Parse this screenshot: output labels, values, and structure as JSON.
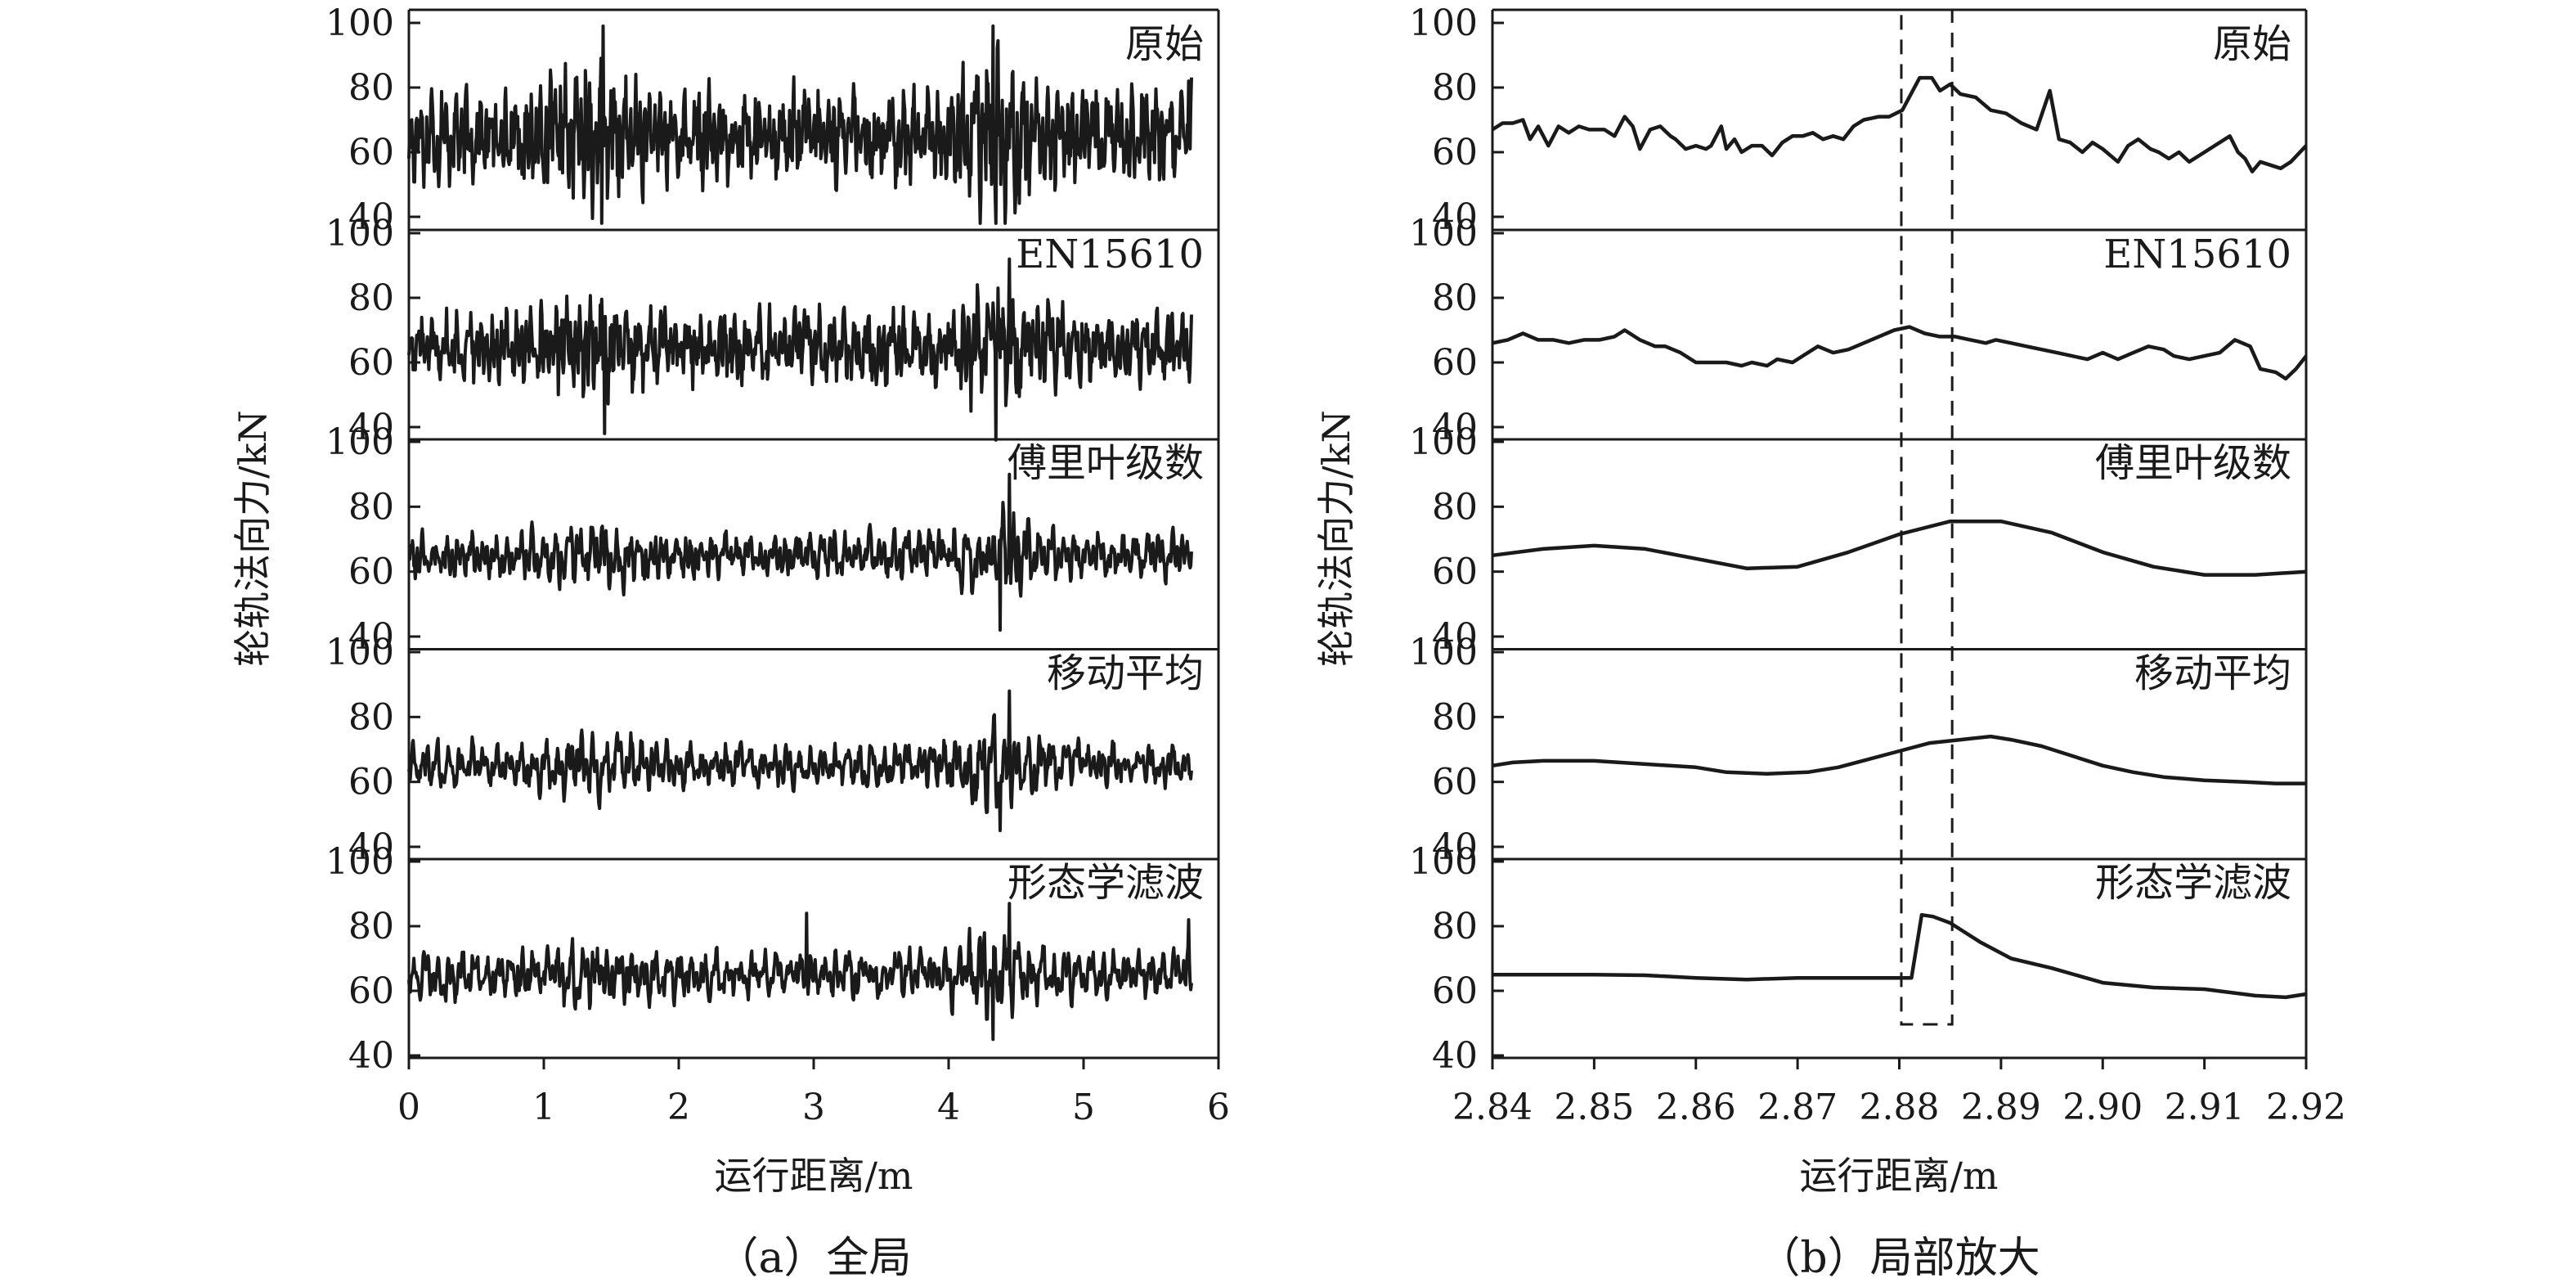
{
  "chart_data": [
    {
      "type": "line",
      "caption": "（a）全局",
      "xlabel": "运行距离/m",
      "ylabel": "轮轨法向力/kN",
      "xlim": [
        0,
        6
      ],
      "xticks": [
        0,
        1,
        2,
        3,
        4,
        5,
        6
      ],
      "xtick_labels": [
        "0",
        "1",
        "2",
        "3",
        "4",
        "5",
        "6"
      ],
      "yticks": [
        40,
        60,
        80,
        100
      ],
      "ytick_labels": [
        "40",
        "60",
        "80",
        "100"
      ],
      "x_extent": [
        0,
        5.8
      ],
      "subplots": [
        {
          "name": "原始",
          "ylim": [
            38,
            101
          ],
          "baseline": 65,
          "noise": 11,
          "smoothness": 0.1,
          "peaks": [
            {
              "x": 1.44,
              "y": 99
            },
            {
              "x": 1.43,
              "y": 38
            },
            {
              "x": 4.33,
              "y": 99
            },
            {
              "x": 4.35,
              "y": 38
            },
            {
              "x": 5.78,
              "y": 82
            }
          ]
        },
        {
          "name": "EN15610",
          "ylim": [
            38,
            101
          ],
          "baseline": 65,
          "noise": 9,
          "smoothness": 0.2,
          "peaks": [
            {
              "x": 4.45,
              "y": 92
            },
            {
              "x": 4.35,
              "y": 36
            },
            {
              "x": 1.45,
              "y": 38
            }
          ]
        },
        {
          "name": "傅里叶级数",
          "ylim": [
            38,
            101
          ],
          "baseline": 65,
          "noise": 7.5,
          "smoothness": 0.5,
          "peaks": [
            {
              "x": 4.45,
              "y": 90
            },
            {
              "x": 4.38,
              "y": 42
            }
          ]
        },
        {
          "name": "移动平均",
          "ylim": [
            38,
            101
          ],
          "baseline": 65,
          "noise": 7.5,
          "smoothness": 0.55,
          "peaks": [
            {
              "x": 4.45,
              "y": 88
            },
            {
              "x": 4.38,
              "y": 45
            }
          ]
        },
        {
          "name": "形态学滤波",
          "ylim": [
            38,
            101
          ],
          "baseline": 65,
          "noise": 7.5,
          "smoothness": 0.5,
          "peaks": [
            {
              "x": 4.45,
              "y": 87
            },
            {
              "x": 4.33,
              "y": 45
            },
            {
              "x": 2.95,
              "y": 84
            },
            {
              "x": 5.78,
              "y": 82
            }
          ]
        }
      ]
    },
    {
      "type": "line",
      "caption": "（b）局部放大",
      "xlabel": "运行距离/m",
      "ylabel": "轮轨法向力/kN",
      "xlim": [
        2.84,
        2.92
      ],
      "xticks": [
        2.84,
        2.85,
        2.86,
        2.87,
        2.88,
        2.89,
        2.9,
        2.91,
        2.92
      ],
      "xtick_labels": [
        "2.84",
        "2.85",
        "2.86",
        "2.87",
        "2.88",
        "2.89",
        "2.90",
        "2.91",
        "2.92"
      ],
      "yticks": [
        40,
        60,
        80,
        100
      ],
      "ytick_labels": [
        "40",
        "60",
        "80",
        "100"
      ],
      "highlight_box": {
        "x": [
          2.8802,
          2.8852
        ],
        "style": "dashed"
      },
      "subplots": [
        {
          "name": "原始",
          "ylim": [
            38,
            101
          ],
          "points": [
            [
              2.84,
              67
            ],
            [
              2.841,
              69
            ],
            [
              2.842,
              69
            ],
            [
              2.843,
              70
            ],
            [
              2.8437,
              64
            ],
            [
              2.8445,
              68
            ],
            [
              2.8455,
              62
            ],
            [
              2.8465,
              68
            ],
            [
              2.8475,
              66
            ],
            [
              2.8485,
              68
            ],
            [
              2.8495,
              67
            ],
            [
              2.851,
              67
            ],
            [
              2.852,
              65
            ],
            [
              2.853,
              71
            ],
            [
              2.8538,
              68
            ],
            [
              2.8545,
              61
            ],
            [
              2.8555,
              67
            ],
            [
              2.8565,
              68
            ],
            [
              2.8575,
              65
            ],
            [
              2.858,
              64
            ],
            [
              2.859,
              61
            ],
            [
              2.86,
              62
            ],
            [
              2.861,
              61
            ],
            [
              2.8615,
              62
            ],
            [
              2.8625,
              68
            ],
            [
              2.863,
              61
            ],
            [
              2.8638,
              64
            ],
            [
              2.8645,
              60
            ],
            [
              2.8655,
              62
            ],
            [
              2.8665,
              62
            ],
            [
              2.8675,
              59
            ],
            [
              2.8685,
              63
            ],
            [
              2.8695,
              65
            ],
            [
              2.8705,
              65
            ],
            [
              2.8715,
              66
            ],
            [
              2.8725,
              64
            ],
            [
              2.8735,
              65
            ],
            [
              2.8745,
              64
            ],
            [
              2.8755,
              68
            ],
            [
              2.8765,
              70
            ],
            [
              2.878,
              71
            ],
            [
              2.879,
              71
            ],
            [
              2.8803,
              73
            ],
            [
              2.882,
              83
            ],
            [
              2.8832,
              83
            ],
            [
              2.884,
              79
            ],
            [
              2.885,
              81
            ],
            [
              2.886,
              78
            ],
            [
              2.8875,
              77
            ],
            [
              2.889,
              73
            ],
            [
              2.8905,
              72
            ],
            [
              2.892,
              69
            ],
            [
              2.8935,
              67
            ],
            [
              2.8948,
              79
            ],
            [
              2.8957,
              64
            ],
            [
              2.8968,
              63
            ],
            [
              2.898,
              60
            ],
            [
              2.899,
              63
            ],
            [
              2.9,
              61
            ],
            [
              2.9015,
              57
            ],
            [
              2.9025,
              62
            ],
            [
              2.9035,
              64
            ],
            [
              2.9047,
              61
            ],
            [
              2.9055,
              60
            ],
            [
              2.9065,
              58
            ],
            [
              2.9075,
              60
            ],
            [
              2.9085,
              57
            ],
            [
              2.9095,
              59
            ],
            [
              2.911,
              62
            ],
            [
              2.9125,
              65
            ],
            [
              2.9133,
              60
            ],
            [
              2.914,
              58
            ],
            [
              2.9147,
              54
            ],
            [
              2.9155,
              57
            ],
            [
              2.9165,
              56
            ],
            [
              2.9175,
              55
            ],
            [
              2.9185,
              57
            ],
            [
              2.92,
              62
            ]
          ]
        },
        {
          "name": "EN15610",
          "ylim": [
            38,
            101
          ],
          "points": [
            [
              2.84,
              66
            ],
            [
              2.8415,
              67
            ],
            [
              2.843,
              69
            ],
            [
              2.8445,
              67
            ],
            [
              2.846,
              67
            ],
            [
              2.8475,
              66
            ],
            [
              2.849,
              67
            ],
            [
              2.8505,
              67
            ],
            [
              2.852,
              68
            ],
            [
              2.853,
              70
            ],
            [
              2.8545,
              67
            ],
            [
              2.856,
              65
            ],
            [
              2.857,
              65
            ],
            [
              2.8585,
              63
            ],
            [
              2.86,
              60
            ],
            [
              2.8615,
              60
            ],
            [
              2.863,
              60
            ],
            [
              2.8645,
              59
            ],
            [
              2.8655,
              60
            ],
            [
              2.867,
              59
            ],
            [
              2.868,
              61
            ],
            [
              2.8695,
              60
            ],
            [
              2.871,
              63
            ],
            [
              2.872,
              65
            ],
            [
              2.8735,
              63
            ],
            [
              2.875,
              64
            ],
            [
              2.8765,
              66
            ],
            [
              2.878,
              68
            ],
            [
              2.8795,
              70
            ],
            [
              2.881,
              71
            ],
            [
              2.8825,
              69
            ],
            [
              2.884,
              68
            ],
            [
              2.8855,
              68
            ],
            [
              2.887,
              67
            ],
            [
              2.8885,
              66
            ],
            [
              2.8895,
              67
            ],
            [
              2.891,
              66
            ],
            [
              2.8925,
              65
            ],
            [
              2.894,
              64
            ],
            [
              2.8955,
              63
            ],
            [
              2.897,
              62
            ],
            [
              2.8985,
              61
            ],
            [
              2.9,
              63
            ],
            [
              2.9015,
              61
            ],
            [
              2.903,
              63
            ],
            [
              2.9045,
              65
            ],
            [
              2.906,
              64
            ],
            [
              2.907,
              62
            ],
            [
              2.9085,
              61
            ],
            [
              2.91,
              62
            ],
            [
              2.9115,
              63
            ],
            [
              2.913,
              67
            ],
            [
              2.9145,
              65
            ],
            [
              2.9155,
              58
            ],
            [
              2.917,
              57
            ],
            [
              2.918,
              55
            ],
            [
              2.919,
              58
            ],
            [
              2.92,
              62
            ]
          ]
        },
        {
          "name": "傅里叶级数",
          "ylim": [
            38,
            101
          ],
          "points": [
            [
              2.84,
              65
            ],
            [
              2.845,
              67
            ],
            [
              2.85,
              68
            ],
            [
              2.855,
              67
            ],
            [
              2.86,
              64
            ],
            [
              2.865,
              61
            ],
            [
              2.87,
              61.5
            ],
            [
              2.875,
              66
            ],
            [
              2.88,
              71.5
            ],
            [
              2.885,
              75.5
            ],
            [
              2.89,
              75.5
            ],
            [
              2.895,
              72
            ],
            [
              2.9,
              66
            ],
            [
              2.905,
              61.5
            ],
            [
              2.91,
              59
            ],
            [
              2.915,
              59
            ],
            [
              2.92,
              60
            ]
          ]
        },
        {
          "name": "移动平均",
          "ylim": [
            38,
            101
          ],
          "points": [
            [
              2.84,
              65
            ],
            [
              2.842,
              66
            ],
            [
              2.845,
              66.5
            ],
            [
              2.85,
              66.5
            ],
            [
              2.855,
              65.5
            ],
            [
              2.86,
              64.5
            ],
            [
              2.863,
              63
            ],
            [
              2.867,
              62.5
            ],
            [
              2.871,
              63
            ],
            [
              2.874,
              64.5
            ],
            [
              2.877,
              67
            ],
            [
              2.88,
              69.5
            ],
            [
              2.883,
              72
            ],
            [
              2.886,
              73
            ],
            [
              2.889,
              74
            ],
            [
              2.891,
              73
            ],
            [
              2.894,
              71
            ],
            [
              2.897,
              68
            ],
            [
              2.9,
              65
            ],
            [
              2.903,
              63
            ],
            [
              2.906,
              61.5
            ],
            [
              2.91,
              60.5
            ],
            [
              2.914,
              60
            ],
            [
              2.917,
              59.5
            ],
            [
              2.92,
              59.5
            ]
          ]
        },
        {
          "name": "形态学滤波",
          "ylim": [
            38,
            101
          ],
          "points": [
            [
              2.84,
              65
            ],
            [
              2.845,
              65
            ],
            [
              2.85,
              65
            ],
            [
              2.855,
              64.8
            ],
            [
              2.86,
              64
            ],
            [
              2.865,
              63.5
            ],
            [
              2.87,
              64
            ],
            [
              2.875,
              64
            ],
            [
              2.88,
              64
            ],
            [
              2.8812,
              64
            ],
            [
              2.8822,
              83.5
            ],
            [
              2.8833,
              83
            ],
            [
              2.885,
              81
            ],
            [
              2.888,
              75
            ],
            [
              2.891,
              70
            ],
            [
              2.895,
              67
            ],
            [
              2.9,
              62.5
            ],
            [
              2.905,
              61
            ],
            [
              2.91,
              60.5
            ],
            [
              2.915,
              58.5
            ],
            [
              2.918,
              58
            ],
            [
              2.92,
              59
            ]
          ]
        }
      ]
    }
  ]
}
